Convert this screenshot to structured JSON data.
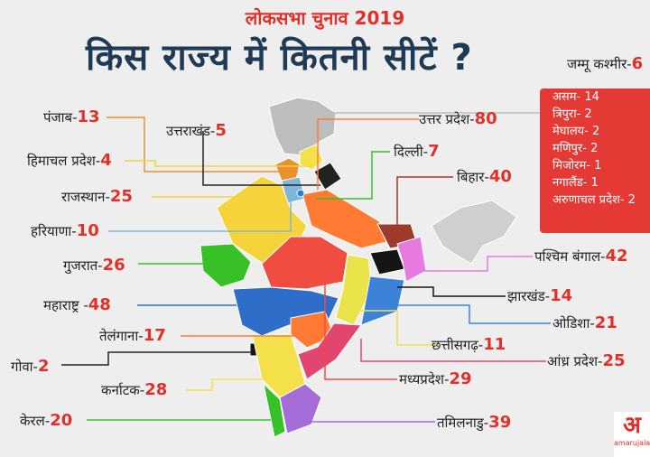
{
  "header": {
    "subtitle": "लोकसभा चुनाव 2019",
    "title": "किस राज्य में कितनी सीटें ?"
  },
  "states_left": [
    {
      "name": "पंजाब-",
      "seats": "13"
    },
    {
      "name": "हिमाचल प्रदेश-",
      "seats": "4"
    },
    {
      "name": "राजस्थान-",
      "seats": "25"
    },
    {
      "name": "हरियाणा-",
      "seats": "10"
    },
    {
      "name": "गुजरात-",
      "seats": "26"
    },
    {
      "name": "महाराष्ट्र -",
      "seats": "48"
    },
    {
      "name": "तेलंगाना-",
      "seats": "17"
    },
    {
      "name": "गोवा-",
      "seats": "2"
    },
    {
      "name": "कर्नाटक-",
      "seats": "28"
    },
    {
      "name": "केरल-",
      "seats": "20"
    }
  ],
  "states_right": [
    {
      "name": "उत्तराखंड-",
      "seats": "5"
    },
    {
      "name": "उत्तर प्रदेश-",
      "seats": "80"
    },
    {
      "name": "दिल्ली-",
      "seats": "7"
    },
    {
      "name": "बिहार-",
      "seats": "40"
    },
    {
      "name": "पश्चिम बंगाल-",
      "seats": "42"
    },
    {
      "name": "झारखंड-",
      "seats": "14"
    },
    {
      "name": "ओडिशा-",
      "seats": "21"
    },
    {
      "name": "छत्तीसगढ़-",
      "seats": "11"
    },
    {
      "name": "आंध्र प्रदेश-",
      "seats": "25"
    },
    {
      "name": "मध्यप्रदेश-",
      "seats": "29"
    },
    {
      "name": "तमिलनाडु-",
      "seats": "39"
    }
  ],
  "jammu_kashmir": {
    "name": "जम्मू कश्मीर-",
    "seats": "6"
  },
  "northeast": [
    "असम- 14",
    "त्रिपुरा- 2",
    "मेघालय- 2",
    "मणिपुर- 2",
    "मिजोरम- 1",
    "नगालैंड- 1",
    "अरुणाचल प्रदेश- 2"
  ],
  "logo": {
    "mark": "अ",
    "text": "amarujala"
  },
  "colors": {
    "accent": "#e0302a",
    "title": "#1f3a55",
    "northeast_box": "#e53935"
  }
}
